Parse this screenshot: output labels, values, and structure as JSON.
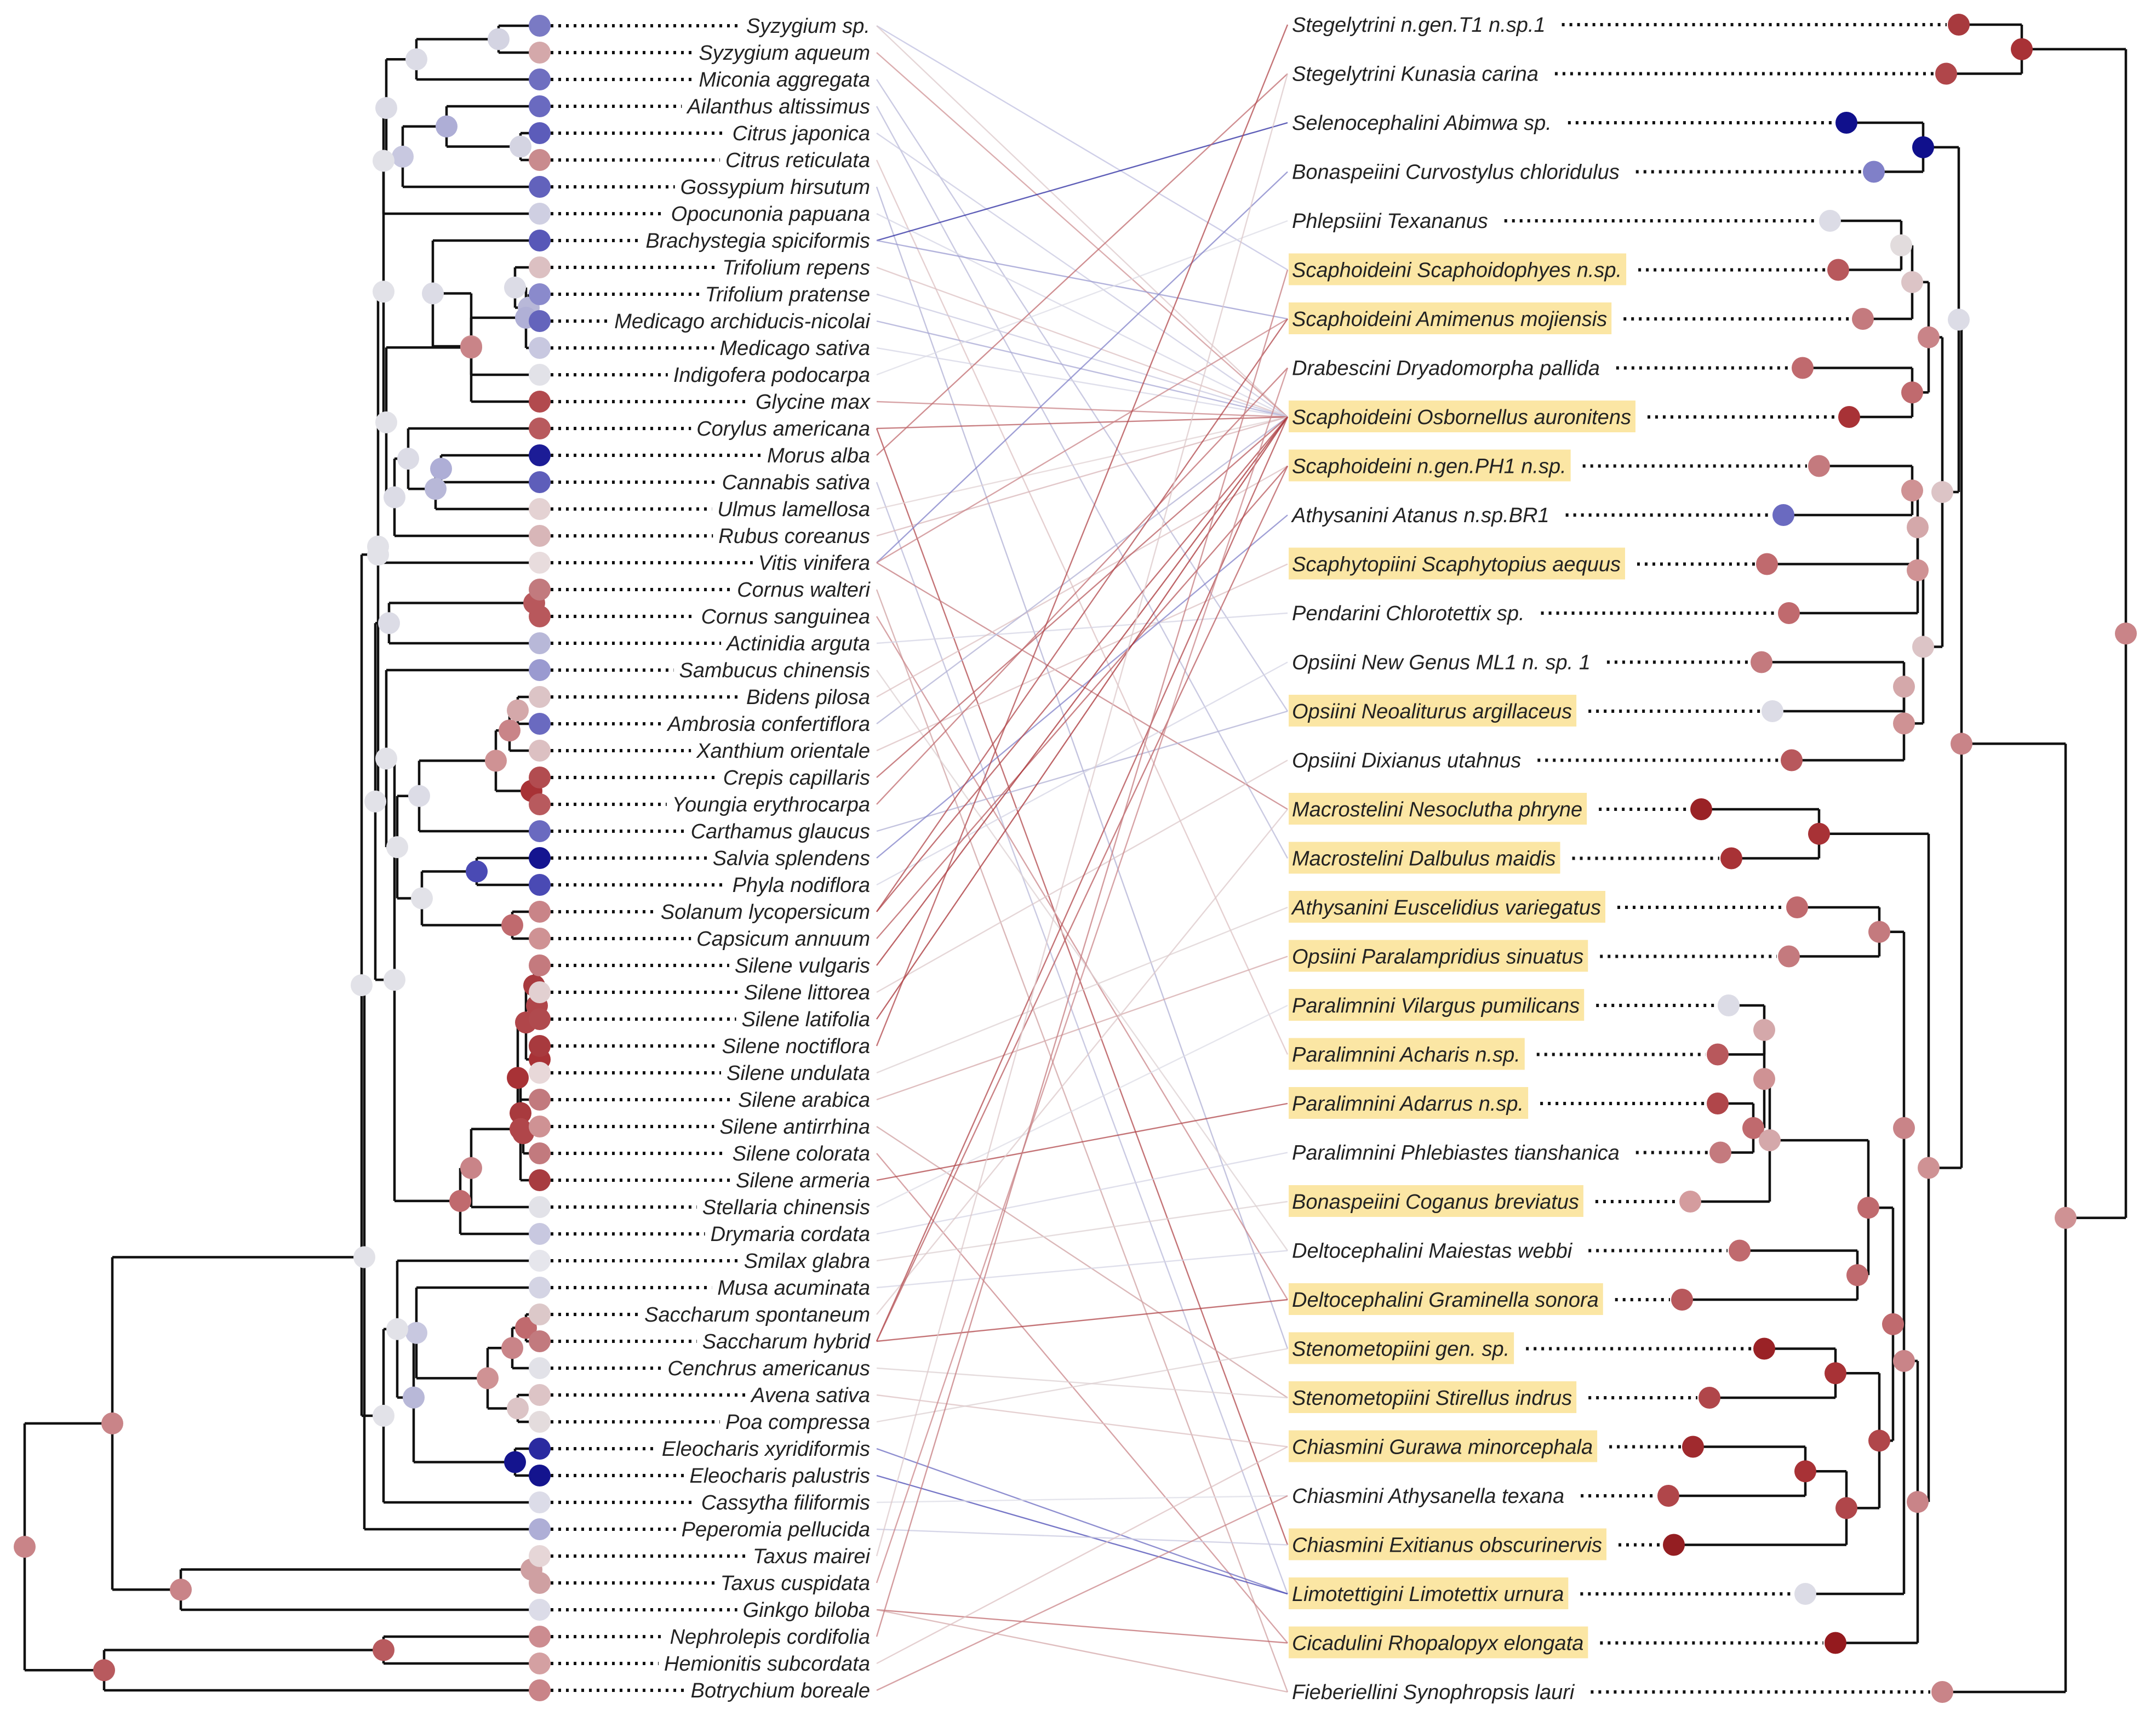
{
  "plants": [
    {
      "name": "Syzygium sp.",
      "color": "#7a7ac4"
    },
    {
      "name": "Syzygium aqueum",
      "color": "#d4a8aa"
    },
    {
      "name": "Miconia aggregata",
      "color": "#6f6fc0"
    },
    {
      "name": "Ailanthus altissimus",
      "color": "#6a6ac0"
    },
    {
      "name": "Citrus japonica",
      "color": "#5c5cba"
    },
    {
      "name": "Citrus reticulata",
      "color": "#c98b8e"
    },
    {
      "name": "Gossypium hirsutum",
      "color": "#6262bc"
    },
    {
      "name": "Opocunonia papuana",
      "color": "#cfcfe2"
    },
    {
      "name": "Brachystegia spiciformis",
      "color": "#5858b8"
    },
    {
      "name": "Trifolium repens",
      "color": "#dcc0c2"
    },
    {
      "name": "Trifolium pratense",
      "color": "#8a8acc"
    },
    {
      "name": "Medicago archiducis-nicolai",
      "color": "#6464bc"
    },
    {
      "name": "Medicago sativa",
      "color": "#c8c8e0"
    },
    {
      "name": "Indigofera podocarpa",
      "color": "#e2e2e8"
    },
    {
      "name": "Glycine max",
      "color": "#b24a4e"
    },
    {
      "name": "Corylus americana",
      "color": "#b85a5e"
    },
    {
      "name": "Morus alba",
      "color": "#1c1c96"
    },
    {
      "name": "Cannabis sativa",
      "color": "#5e5eba"
    },
    {
      "name": "Ulmus lamellosa",
      "color": "#e4d2d3"
    },
    {
      "name": "Rubus coreanus",
      "color": "#d8b6b8"
    },
    {
      "name": "Vitis vinifera",
      "color": "#e8dcdd"
    },
    {
      "name": "Cornus walteri",
      "color": "#c27a7e"
    },
    {
      "name": "Cornus sanguinea",
      "color": "#b8585c"
    },
    {
      "name": "Actinidia arguta",
      "color": "#b8b8d8"
    },
    {
      "name": "Sambucus chinensis",
      "color": "#9a9ad0"
    },
    {
      "name": "Bidens pilosa",
      "color": "#dcc4c6"
    },
    {
      "name": "Ambrosia confertiflora",
      "color": "#6a6ac0"
    },
    {
      "name": "Xanthium orientale",
      "color": "#dcc0c2"
    },
    {
      "name": "Crepis capillaris",
      "color": "#b24c50"
    },
    {
      "name": "Youngia erythrocarpa",
      "color": "#b85a5e"
    },
    {
      "name": "Carthamus glaucus",
      "color": "#6a6ac0"
    },
    {
      "name": "Salvia splendens",
      "color": "#141490"
    },
    {
      "name": "Phyla nodiflora",
      "color": "#4a4ab4"
    },
    {
      "name": "Solanum lycopersicum",
      "color": "#c98488"
    },
    {
      "name": "Capsicum annuum",
      "color": "#cf9294"
    },
    {
      "name": "Silene vulgaris",
      "color": "#c47a7e"
    },
    {
      "name": "Silene littorea",
      "color": "#e2d0d1"
    },
    {
      "name": "Silene latifolia",
      "color": "#b04a4e"
    },
    {
      "name": "Silene noctiflora",
      "color": "#a83a3e"
    },
    {
      "name": "Silene undulata",
      "color": "#e8d8d9"
    },
    {
      "name": "Silene arabica",
      "color": "#c27a7e"
    },
    {
      "name": "Silene antirrhina",
      "color": "#cf9294"
    },
    {
      "name": "Silene colorata",
      "color": "#c27a7e"
    },
    {
      "name": "Silene armeria",
      "color": "#a83c40"
    },
    {
      "name": "Stellaria chinensis",
      "color": "#e2e2e8"
    },
    {
      "name": "Drymaria cordata",
      "color": "#c8c8e0"
    },
    {
      "name": "Smilax glabra",
      "color": "#e6e6ec"
    },
    {
      "name": "Musa acuminata",
      "color": "#d4d4e4"
    },
    {
      "name": "Saccharum spontaneum",
      "color": "#dcc8c9"
    },
    {
      "name": "Saccharum hybrid",
      "color": "#c27a7e"
    },
    {
      "name": "Cenchrus americanus",
      "color": "#e2e2e8"
    },
    {
      "name": "Avena sativa",
      "color": "#ddc4c6"
    },
    {
      "name": "Poa compressa",
      "color": "#e4dcdd"
    },
    {
      "name": "Eleocharis xyridiformis",
      "color": "#2a2aa0"
    },
    {
      "name": "Eleocharis palustris",
      "color": "#14148e"
    },
    {
      "name": "Cassytha filiformis",
      "color": "#dcdce8"
    },
    {
      "name": "Peperomia pellucida",
      "color": "#aeaed6"
    },
    {
      "name": "Taxus mairei",
      "color": "#e6d6d7"
    },
    {
      "name": "Taxus cuspidata",
      "color": "#cfa0a2"
    },
    {
      "name": "Ginkgo biloba",
      "color": "#dcdce8"
    },
    {
      "name": "Nephrolepis cordifolia",
      "color": "#cc8c90"
    },
    {
      "name": "Hemionitis subcordata",
      "color": "#d4a0a2"
    },
    {
      "name": "Botrychium boreale",
      "color": "#c98488"
    }
  ],
  "insects": [
    {
      "name": "Stegelytrini n.gen.T1 n.sp.1",
      "highlight": false,
      "color": "#a83a3e"
    },
    {
      "name": "Stegelytrini Kunasia carina",
      "highlight": false,
      "color": "#b0464a"
    },
    {
      "name": "Selenocephalini Abimwa sp.",
      "highlight": false,
      "color": "#10108c"
    },
    {
      "name": "Bonaspeiini Curvostylus chloridulus",
      "highlight": false,
      "color": "#8080c8"
    },
    {
      "name": "Phlepsiini Texananus",
      "highlight": false,
      "color": "#dcdce6"
    },
    {
      "name": "Scaphoideini Scaphoidophyes n.sp.",
      "highlight": true,
      "color": "#b8585c"
    },
    {
      "name": "Scaphoideini Amimenus mojiensis",
      "highlight": true,
      "color": "#c47a7e"
    },
    {
      "name": "Drabescini Dryadomorpha pallida",
      "highlight": false,
      "color": "#c06a6e"
    },
    {
      "name": "Scaphoideini Osbornellus auronitens",
      "highlight": true,
      "color": "#a83236"
    },
    {
      "name": "Scaphoideini n.gen.PH1 n.sp.",
      "highlight": true,
      "color": "#c47a7e"
    },
    {
      "name": "Athysanini Atanus n.sp.BR1",
      "highlight": false,
      "color": "#6a6ac0"
    },
    {
      "name": "Scaphytopiini Scaphytopius aequus",
      "highlight": true,
      "color": "#c06a6e"
    },
    {
      "name": "Pendarini Chlorotettix sp.",
      "highlight": false,
      "color": "#c06a6e"
    },
    {
      "name": "Opsiini New Genus ML1 n. sp. 1",
      "highlight": false,
      "color": "#c47a7e"
    },
    {
      "name": "Opsiini Neoaliturus argillaceus",
      "highlight": true,
      "color": "#dcdce6"
    },
    {
      "name": "Opsiini Dixianus utahnus",
      "highlight": false,
      "color": "#b8585c"
    },
    {
      "name": "Macrostelini Nesoclutha phryne",
      "highlight": true,
      "color": "#9a2226"
    },
    {
      "name": "Macrostelini Dalbulus maidis",
      "highlight": true,
      "color": "#a83236"
    },
    {
      "name": "Athysanini Euscelidius variegatus",
      "highlight": true,
      "color": "#c06a6e"
    },
    {
      "name": "Opsiini Paralampridius sinuatus",
      "highlight": true,
      "color": "#c47a7e"
    },
    {
      "name": "Paralimnini Vilargus pumilicans",
      "highlight": true,
      "color": "#dcdce6"
    },
    {
      "name": "Paralimnini Acharis n.sp.",
      "highlight": true,
      "color": "#b8585c"
    },
    {
      "name": "Paralimnini Adarrus n.sp.",
      "highlight": true,
      "color": "#b0464a"
    },
    {
      "name": "Paralimnini Phlebiastes tianshanica",
      "highlight": false,
      "color": "#c47a7e"
    },
    {
      "name": "Bonaspeiini Coganus breviatus",
      "highlight": true,
      "color": "#d49c9e"
    },
    {
      "name": "Deltocephalini Maiestas webbi",
      "highlight": false,
      "color": "#c06a6e"
    },
    {
      "name": "Deltocephalini Graminella sonora",
      "highlight": true,
      "color": "#b8585c"
    },
    {
      "name": "Stenometopiini gen. sp.",
      "highlight": true,
      "color": "#9a2226"
    },
    {
      "name": "Stenometopiini Stirellus indrus",
      "highlight": true,
      "color": "#b0464a"
    },
    {
      "name": "Chiasmini Gurawa minorcephala",
      "highlight": true,
      "color": "#a02a2e"
    },
    {
      "name": "Chiasmini Athysanella texana",
      "highlight": false,
      "color": "#b0464a"
    },
    {
      "name": "Chiasmini Exitianus obscurinervis",
      "highlight": true,
      "color": "#941e22"
    },
    {
      "name": "Limotettigini Limotettix urnura",
      "highlight": true,
      "color": "#dcdce6"
    },
    {
      "name": "Cicadulini Rhopalopyx elongata",
      "highlight": true,
      "color": "#941a1e"
    },
    {
      "name": "Fieberiellini Synophropsis lauri",
      "highlight": false,
      "color": "#c98488"
    }
  ],
  "links": [
    {
      "plant": 0,
      "insect": 5,
      "color": "#bfbfe0"
    },
    {
      "plant": 0,
      "insect": 8,
      "color": "#dcc8c9"
    },
    {
      "plant": 1,
      "insect": 8,
      "color": "#cf9294"
    },
    {
      "plant": 2,
      "insect": 14,
      "color": "#b8b8d8"
    },
    {
      "plant": 3,
      "insect": 17,
      "color": "#b8b8d8"
    },
    {
      "plant": 4,
      "insect": 8,
      "color": "#c8c8e0"
    },
    {
      "plant": 5,
      "insect": 21,
      "color": "#dcc0c2"
    },
    {
      "plant": 6,
      "insect": 27,
      "color": "#b0b0d4"
    },
    {
      "plant": 7,
      "insect": 8,
      "color": "#d4d4e4"
    },
    {
      "plant": 8,
      "insect": 2,
      "color": "#2a2aa0"
    },
    {
      "plant": 8,
      "insect": 6,
      "color": "#9a9ad0"
    },
    {
      "plant": 9,
      "insect": 8,
      "color": "#dcc0c2"
    },
    {
      "plant": 10,
      "insect": 8,
      "color": "#c8c8e0"
    },
    {
      "plant": 11,
      "insect": 8,
      "color": "#a8a8d4"
    },
    {
      "plant": 12,
      "insect": 8,
      "color": "#d4d4e4"
    },
    {
      "plant": 13,
      "insect": 4,
      "color": "#dcdce6"
    },
    {
      "plant": 14,
      "insect": 8,
      "color": "#c98488"
    },
    {
      "plant": 15,
      "insect": 8,
      "color": "#b85a5e"
    },
    {
      "plant": 15,
      "insect": 31,
      "color": "#b0464a"
    },
    {
      "plant": 16,
      "insect": 1,
      "color": "#c06a6e"
    },
    {
      "plant": 17,
      "insect": 32,
      "color": "#b8b8d8"
    },
    {
      "plant": 18,
      "insect": 8,
      "color": "#e0d2d3"
    },
    {
      "plant": 19,
      "insect": 8,
      "color": "#d8b6b8"
    },
    {
      "plant": 20,
      "insect": 3,
      "color": "#8080c8"
    },
    {
      "plant": 20,
      "insect": 6,
      "color": "#c98488"
    },
    {
      "plant": 20,
      "insect": 16,
      "color": "#c47a7e"
    },
    {
      "plant": 21,
      "insect": 34,
      "color": "#cfa0a2"
    },
    {
      "plant": 22,
      "insect": 26,
      "color": "#c98488"
    },
    {
      "plant": 23,
      "insect": 12,
      "color": "#d4d4e4"
    },
    {
      "plant": 24,
      "insect": 25,
      "color": "#dcd0d1"
    },
    {
      "plant": 25,
      "insect": 9,
      "color": "#dcc0c2"
    },
    {
      "plant": 26,
      "insect": 8,
      "color": "#b0b0d4"
    },
    {
      "plant": 27,
      "insect": 11,
      "color": "#dcc0c2"
    },
    {
      "plant": 28,
      "insect": 8,
      "color": "#b85a5e"
    },
    {
      "plant": 29,
      "insect": 7,
      "color": "#c06a6e"
    },
    {
      "plant": 30,
      "insect": 14,
      "color": "#b0b0d4"
    },
    {
      "plant": 31,
      "insect": 10,
      "color": "#8080c8"
    },
    {
      "plant": 32,
      "insect": 13,
      "color": "#d4d4e4"
    },
    {
      "plant": 33,
      "insect": 6,
      "color": "#b0464a"
    },
    {
      "plant": 33,
      "insect": 8,
      "color": "#b0464a"
    },
    {
      "plant": 34,
      "insect": 9,
      "color": "#b8585c"
    },
    {
      "plant": 35,
      "insect": 8,
      "color": "#a83236"
    },
    {
      "plant": 36,
      "insect": 15,
      "color": "#dcc8c9"
    },
    {
      "plant": 37,
      "insect": 8,
      "color": "#a83236"
    },
    {
      "plant": 38,
      "insect": 0,
      "color": "#b0464a"
    },
    {
      "plant": 39,
      "insect": 18,
      "color": "#dcd0d1"
    },
    {
      "plant": 40,
      "insect": 19,
      "color": "#d4a8aa"
    },
    {
      "plant": 41,
      "insect": 28,
      "color": "#cfa0a2"
    },
    {
      "plant": 42,
      "insect": 33,
      "color": "#c98488"
    },
    {
      "plant": 43,
      "insect": 22,
      "color": "#b0464a"
    },
    {
      "plant": 44,
      "insect": 20,
      "color": "#dcdce6"
    },
    {
      "plant": 45,
      "insect": 23,
      "color": "#d4d4e4"
    },
    {
      "plant": 46,
      "insect": 24,
      "color": "#dcd0d1"
    },
    {
      "plant": 47,
      "insect": 25,
      "color": "#d4d4e4"
    },
    {
      "plant": 48,
      "insect": 16,
      "color": "#dcc8c9"
    },
    {
      "plant": 49,
      "insect": 8,
      "color": "#b0464a"
    },
    {
      "plant": 49,
      "insect": 9,
      "color": "#b8585c"
    },
    {
      "plant": 49,
      "insect": 26,
      "color": "#b0464a"
    },
    {
      "plant": 50,
      "insect": 28,
      "color": "#dcd0d1"
    },
    {
      "plant": 51,
      "insect": 29,
      "color": "#dcc0c2"
    },
    {
      "plant": 52,
      "insect": 27,
      "color": "#dcd0d1"
    },
    {
      "plant": 53,
      "insect": 32,
      "color": "#6a6ac0"
    },
    {
      "plant": 54,
      "insect": 32,
      "color": "#4a4ab4"
    },
    {
      "plant": 55,
      "insect": 30,
      "color": "#dcdce6"
    },
    {
      "plant": 56,
      "insect": 31,
      "color": "#c8c8e0"
    },
    {
      "plant": 57,
      "insect": 1,
      "color": "#dcc8c9"
    },
    {
      "plant": 58,
      "insect": 7,
      "color": "#c98488"
    },
    {
      "plant": 59,
      "insect": 33,
      "color": "#c06a6e"
    },
    {
      "plant": 59,
      "insect": 34,
      "color": "#d4a8aa"
    },
    {
      "plant": 60,
      "insect": 5,
      "color": "#c47a7e"
    },
    {
      "plant": 61,
      "insect": 29,
      "color": "#dcc0c2"
    },
    {
      "plant": 62,
      "insect": 30,
      "color": "#c98488"
    }
  ]
}
